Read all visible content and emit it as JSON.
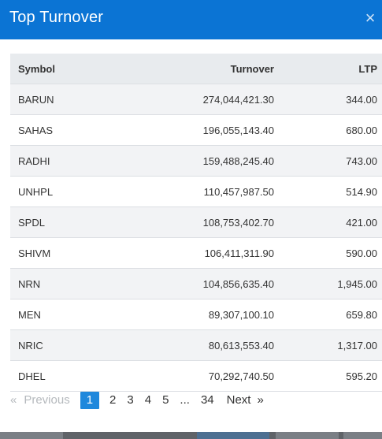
{
  "modal": {
    "title": "Top Turnover",
    "close_glyph": "×"
  },
  "table": {
    "headers": {
      "symbol": "Symbol",
      "turnover": "Turnover",
      "ltp": "LTP"
    },
    "rows": [
      {
        "symbol": "BARUN",
        "turnover": "274,044,421.30",
        "ltp": "344.00"
      },
      {
        "symbol": "SAHAS",
        "turnover": "196,055,143.40",
        "ltp": "680.00"
      },
      {
        "symbol": "RADHI",
        "turnover": "159,488,245.40",
        "ltp": "743.00"
      },
      {
        "symbol": "UNHPL",
        "turnover": "110,457,987.50",
        "ltp": "514.90"
      },
      {
        "symbol": "SPDL",
        "turnover": "108,753,402.70",
        "ltp": "421.00"
      },
      {
        "symbol": "SHIVM",
        "turnover": "106,411,311.90",
        "ltp": "590.00"
      },
      {
        "symbol": "NRN",
        "turnover": "104,856,635.40",
        "ltp": "1,945.00"
      },
      {
        "symbol": "MEN",
        "turnover": "89,307,100.10",
        "ltp": "659.80"
      },
      {
        "symbol": "NRIC",
        "turnover": "80,613,553.40",
        "ltp": "1,317.00"
      },
      {
        "symbol": "DHEL",
        "turnover": "70,292,740.50",
        "ltp": "595.20"
      }
    ]
  },
  "pagination": {
    "prev_arrow": "«",
    "previous": "Previous",
    "pages": [
      "1",
      "2",
      "3",
      "4",
      "5"
    ],
    "ellipsis": "...",
    "last_page": "34",
    "next": "Next",
    "next_arrow": "»",
    "current": "1"
  }
}
